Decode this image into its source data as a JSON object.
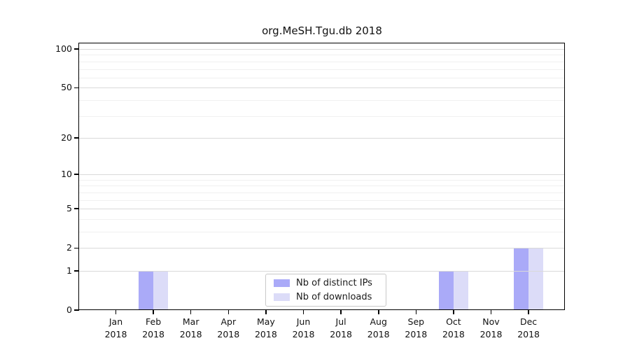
{
  "figure": {
    "title": "org.MeSH.Tgu.db 2018"
  },
  "chart_data": {
    "type": "bar",
    "title": "org.MeSH.Tgu.db 2018",
    "x_year": "2018",
    "categories": [
      "Jan",
      "Feb",
      "Mar",
      "Apr",
      "May",
      "Jun",
      "Jul",
      "Aug",
      "Sep",
      "Oct",
      "Nov",
      "Dec"
    ],
    "series": [
      {
        "name": "Nb of distinct IPs",
        "color": "#aaaaf8",
        "values": [
          0,
          1,
          0,
          0,
          0,
          0,
          0,
          0,
          0,
          1,
          0,
          2
        ]
      },
      {
        "name": "Nb of downloads",
        "color": "#dcdcf8",
        "values": [
          0,
          1,
          0,
          0,
          0,
          0,
          0,
          0,
          0,
          1,
          0,
          2
        ]
      }
    ],
    "yscale": "log1p",
    "ylabel": "",
    "xlabel": "",
    "y_ticks": [
      0,
      1,
      2,
      5,
      10,
      20,
      50,
      100
    ],
    "y_minor_gridlines": [
      3,
      4,
      6,
      7,
      8,
      9,
      30,
      40,
      60,
      70,
      80,
      90
    ],
    "ylim": [
      0,
      110
    ],
    "grid": "horizontal",
    "legend_position": "bottom-center",
    "colors": {
      "axis": "#000000",
      "grid_major": "#d9d9d9",
      "grid_minor": "#f0f0f0",
      "background": "#ffffff"
    }
  },
  "legend": {
    "items": [
      {
        "label": "Nb of distinct IPs"
      },
      {
        "label": "Nb of downloads"
      }
    ]
  }
}
